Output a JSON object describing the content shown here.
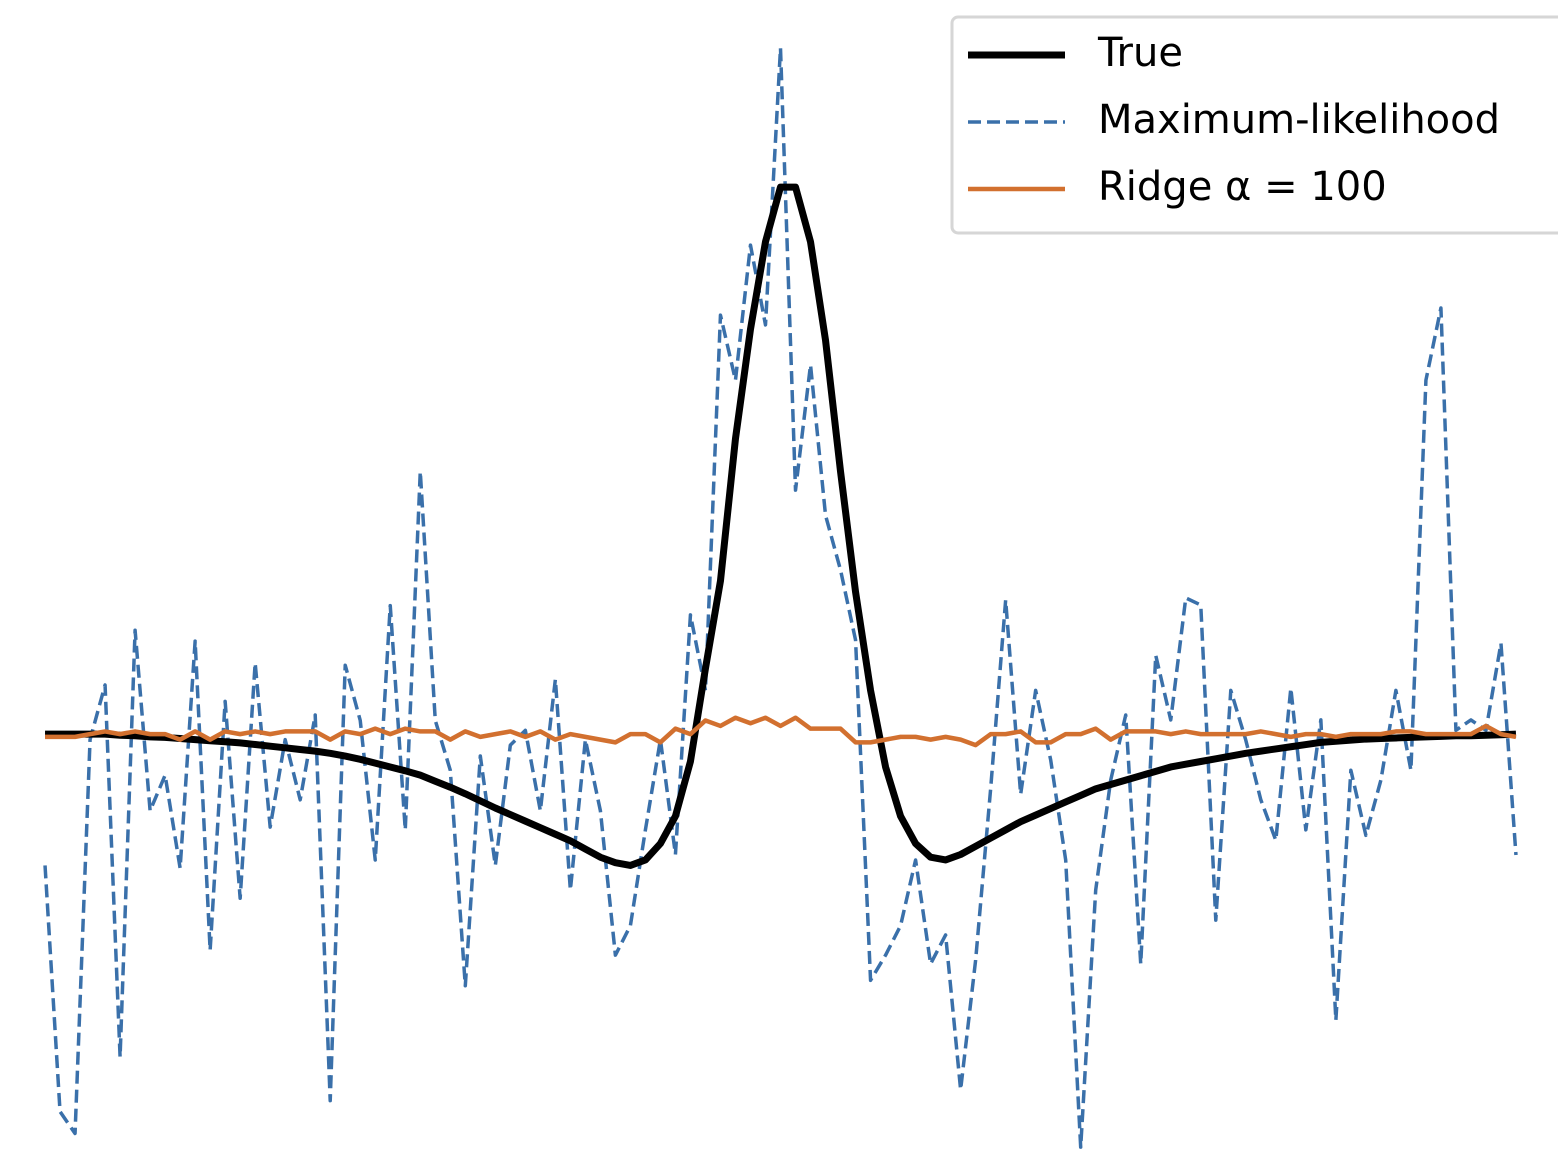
{
  "chart_data": {
    "type": "line",
    "x": [
      0,
      1,
      2,
      3,
      4,
      5,
      6,
      7,
      8,
      9,
      10,
      11,
      12,
      13,
      14,
      15,
      16,
      17,
      18,
      19,
      20,
      21,
      22,
      23,
      24,
      25,
      26,
      27,
      28,
      29,
      30,
      31,
      32,
      33,
      34,
      35,
      36,
      37,
      38,
      39,
      40,
      41,
      42,
      43,
      44,
      45,
      46,
      47,
      48,
      49,
      50,
      51,
      52,
      53,
      54,
      55,
      56,
      57,
      58,
      59,
      60,
      61,
      62,
      63,
      64,
      65,
      66,
      67,
      68,
      69,
      70,
      71,
      72,
      73,
      74,
      75,
      76,
      77,
      78,
      79,
      80,
      81,
      82,
      83,
      84,
      85,
      86,
      87,
      88,
      89,
      90,
      91,
      92,
      93,
      94,
      95,
      96,
      97,
      98
    ],
    "xlim": [
      -3,
      100.8
    ],
    "ylim": [
      -0.762,
      1.342
    ],
    "legend": "upper right",
    "series": [
      {
        "name": "True",
        "color": "#000000",
        "style": "solid",
        "values": [
          0,
          0,
          0,
          0,
          0,
          -0.002,
          -0.003,
          -0.005,
          -0.006,
          -0.008,
          -0.01,
          -0.012,
          -0.014,
          -0.016,
          -0.019,
          -0.022,
          -0.025,
          -0.028,
          -0.031,
          -0.035,
          -0.04,
          -0.046,
          -0.053,
          -0.06,
          -0.067,
          -0.075,
          -0.086,
          -0.097,
          -0.109,
          -0.122,
          -0.135,
          -0.147,
          -0.159,
          -0.171,
          -0.183,
          -0.195,
          -0.21,
          -0.225,
          -0.235,
          -0.24,
          -0.23,
          -0.2,
          -0.15,
          -0.05,
          0.12,
          0.28,
          0.54,
          0.74,
          0.9,
          1.0,
          1.0,
          0.9,
          0.72,
          0.48,
          0.26,
          0.08,
          -0.06,
          -0.15,
          -0.2,
          -0.225,
          -0.23,
          -0.22,
          -0.205,
          -0.19,
          -0.175,
          -0.16,
          -0.148,
          -0.136,
          -0.124,
          -0.112,
          -0.1,
          -0.092,
          -0.084,
          -0.076,
          -0.068,
          -0.06,
          -0.055,
          -0.05,
          -0.045,
          -0.04,
          -0.035,
          -0.031,
          -0.027,
          -0.023,
          -0.019,
          -0.015,
          -0.013,
          -0.011,
          -0.009,
          -0.008,
          -0.007,
          -0.006,
          -0.005,
          -0.004,
          -0.003,
          -0.003,
          -0.002,
          -0.001,
          0
        ]
      },
      {
        "name": "Maximum-likelihood",
        "color": "#3a70aa",
        "style": "dashed",
        "values": [
          -0.24,
          -0.69,
          -0.73,
          -0.01,
          0.09,
          -0.59,
          0.19,
          -0.14,
          -0.075,
          -0.245,
          0.17,
          -0.395,
          0.06,
          -0.3,
          0.13,
          -0.17,
          -0.01,
          -0.12,
          0.035,
          -0.67,
          0.126,
          0.025,
          -0.23,
          0.235,
          -0.175,
          0.48,
          0.025,
          -0.066,
          -0.46,
          -0.04,
          -0.24,
          -0.02,
          0.007,
          -0.14,
          0.1,
          -0.285,
          -0.01,
          -0.14,
          -0.404,
          -0.35,
          -0.175,
          -0.01,
          -0.22,
          0.218,
          0.08,
          0.766,
          0.647,
          0.894,
          0.748,
          1.254,
          0.446,
          0.675,
          0.4,
          0.3,
          0.172,
          -0.45,
          -0.404,
          -0.35,
          -0.23,
          -0.42,
          -0.367,
          -0.65,
          -0.413,
          -0.1,
          0.245,
          -0.11,
          0.08,
          -0.047,
          -0.23,
          -0.755,
          -0.285,
          -0.084,
          0.035,
          -0.42,
          0.144,
          0.026,
          0.249,
          0.236,
          -0.34,
          0.08,
          -0.011,
          -0.12,
          -0.194,
          0.084,
          -0.175,
          0.026,
          -0.523,
          -0.066,
          -0.185,
          -0.084,
          0.08,
          -0.066,
          0.647,
          0.779,
          0.007,
          0.026,
          0.007,
          0.166,
          -0.221
        ]
      },
      {
        "name": "Ridge α = 100",
        "color": "#d2702f",
        "style": "solid",
        "values": [
          -0.005,
          -0.005,
          -0.005,
          0.0,
          0.005,
          0.0,
          0.005,
          0.0,
          0.0,
          -0.01,
          0.005,
          -0.01,
          0.005,
          0.0,
          0.005,
          0.0,
          0.005,
          0.005,
          0.005,
          -0.01,
          0.005,
          0.0,
          0.01,
          0.0,
          0.01,
          0.005,
          0.005,
          -0.01,
          0.005,
          -0.005,
          0.0,
          0.005,
          -0.005,
          0.005,
          -0.01,
          0.0,
          -0.005,
          -0.01,
          -0.015,
          0.0,
          0.0,
          -0.015,
          0.01,
          0.0,
          0.025,
          0.015,
          0.03,
          0.02,
          0.03,
          0.015,
          0.03,
          0.01,
          0.01,
          0.01,
          -0.015,
          -0.015,
          -0.01,
          -0.005,
          -0.005,
          -0.01,
          -0.005,
          -0.01,
          -0.02,
          0.0,
          0.0,
          0.005,
          -0.015,
          -0.015,
          0.0,
          0.0,
          0.01,
          -0.01,
          0.005,
          0.005,
          0.005,
          0.0,
          0.005,
          0.0,
          0.0,
          0.0,
          0.0,
          0.005,
          0.0,
          -0.005,
          0.0,
          0.0,
          -0.005,
          0.0,
          0.0,
          0.0,
          0.005,
          0.005,
          0.0,
          0.0,
          0.0,
          0.0,
          0.015,
          0.0,
          -0.005
        ]
      }
    ]
  }
}
